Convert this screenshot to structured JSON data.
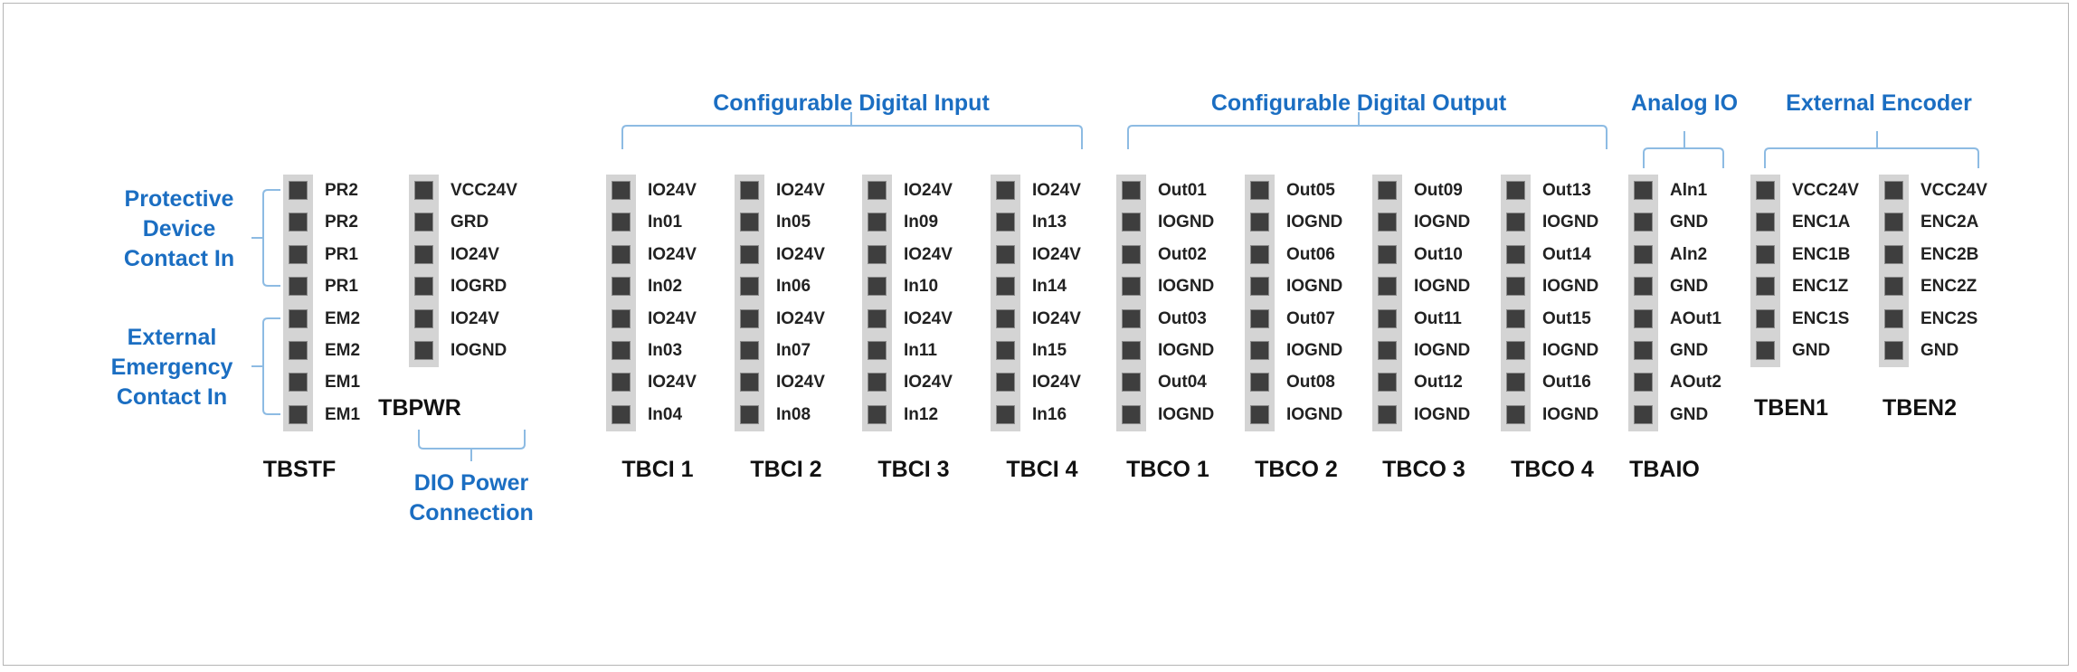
{
  "colors": {
    "accent": "#1b6ec2",
    "bracket": "#8dbbe3",
    "strip": "#d4d4d4",
    "pin": "#3e3e3e"
  },
  "groups": {
    "protective": "Protective\nDevice\nContact In",
    "emergency": "External\nEmergency\nContact In",
    "dio_power": "DIO Power\nConnection",
    "digital_input": "Configurable Digital Input",
    "digital_output": "Configurable Digital Output",
    "analog": "Analog IO",
    "encoder": "External Encoder"
  },
  "blocks": [
    {
      "name": "TBSTF",
      "pins": [
        "PR2",
        "PR2",
        "PR1",
        "PR1",
        "EM2",
        "EM2",
        "EM1",
        "EM1"
      ]
    },
    {
      "name": "TBPWR",
      "pins": [
        "VCC24V",
        "GRD",
        "IO24V",
        "IOGRD",
        "IO24V",
        "IOGND"
      ]
    },
    {
      "name": "TBCI 1",
      "pins": [
        "IO24V",
        "In01",
        "IO24V",
        "In02",
        "IO24V",
        "In03",
        "IO24V",
        "In04"
      ]
    },
    {
      "name": "TBCI 2",
      "pins": [
        "IO24V",
        "In05",
        "IO24V",
        "In06",
        "IO24V",
        "In07",
        "IO24V",
        "In08"
      ]
    },
    {
      "name": "TBCI 3",
      "pins": [
        "IO24V",
        "In09",
        "IO24V",
        "In10",
        "IO24V",
        "In11",
        "IO24V",
        "In12"
      ]
    },
    {
      "name": "TBCI 4",
      "pins": [
        "IO24V",
        "In13",
        "IO24V",
        "In14",
        "IO24V",
        "In15",
        "IO24V",
        "In16"
      ]
    },
    {
      "name": "TBCO 1",
      "pins": [
        "Out01",
        "IOGND",
        "Out02",
        "IOGND",
        "Out03",
        "IOGND",
        "Out04",
        "IOGND"
      ]
    },
    {
      "name": "TBCO 2",
      "pins": [
        "Out05",
        "IOGND",
        "Out06",
        "IOGND",
        "Out07",
        "IOGND",
        "Out08",
        "IOGND"
      ]
    },
    {
      "name": "TBCO 3",
      "pins": [
        "Out09",
        "IOGND",
        "Out10",
        "IOGND",
        "Out11",
        "IOGND",
        "Out12",
        "IOGND"
      ]
    },
    {
      "name": "TBCO 4",
      "pins": [
        "Out13",
        "IOGND",
        "Out14",
        "IOGND",
        "Out15",
        "IOGND",
        "Out16",
        "IOGND"
      ]
    },
    {
      "name": "TBAIO",
      "pins": [
        "Aln1",
        "GND",
        "Aln2",
        "GND",
        "AOut1",
        "GND",
        "AOut2",
        "GND"
      ]
    },
    {
      "name": "TBEN1",
      "pins": [
        "VCC24V",
        "ENC1A",
        "ENC1B",
        "ENC1Z",
        "ENC1S",
        "GND"
      ]
    },
    {
      "name": "TBEN2",
      "pins": [
        "VCC24V",
        "ENC2A",
        "ENC2B",
        "ENC2Z",
        "ENC2S",
        "GND"
      ]
    }
  ]
}
